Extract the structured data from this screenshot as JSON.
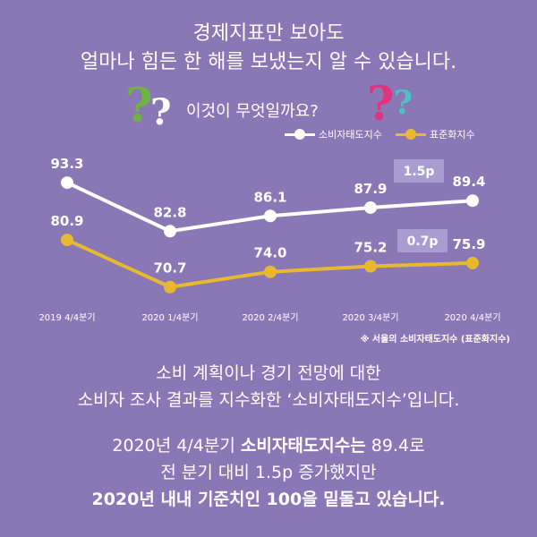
{
  "headline": {
    "line1": "경제지표만 보아도",
    "line2": "얼마나 힘든 한 해를 보냈는지 알 수 있습니다."
  },
  "question": "이것이 무엇일까요?",
  "note": "※ 서울의 소비자태도지수 (표준화지수)",
  "description": {
    "line1": "소비 계획이나 경기 전망에 대한",
    "line2": "소비자 조사 결과를 지수화한 ‘소비자태도지수’입니다."
  },
  "summary": {
    "line1_a": "2020년 4/4분기 ",
    "line1_b": "소비자태도지수는",
    "line1_c": " 89.4",
    "line1_d": "로",
    "line2": "전 분기 대비 1.5p 증가했지만",
    "line3": "2020년 내내 기준치인 100을 밑돌고 있습니다."
  },
  "colors": {
    "background": "#8a78b6",
    "series1": "#ffffff",
    "series2": "#e8b92e",
    "callout_box": "#a99cd0"
  },
  "chart_data": {
    "type": "line",
    "categories": [
      "2019 4/4분기",
      "2020 1/4분기",
      "2020 2/4분기",
      "2020 3/4분기",
      "2020 4/4분기"
    ],
    "series": [
      {
        "name": "소비자태도지수",
        "values": [
          93.3,
          82.8,
          86.1,
          87.9,
          89.4
        ],
        "labels": [
          "93.3",
          "82.8",
          "86.1",
          "87.9",
          "89.4"
        ]
      },
      {
        "name": "표준화지수",
        "values": [
          80.9,
          70.7,
          74.0,
          75.2,
          75.9
        ],
        "labels": [
          "80.9",
          "70.7",
          "74.0",
          "75.2",
          "75.9"
        ]
      }
    ],
    "annotations": [
      "1.5p",
      "0.7p"
    ],
    "ylim": [
      66,
      97
    ],
    "grid": false,
    "legend": "top-right"
  }
}
